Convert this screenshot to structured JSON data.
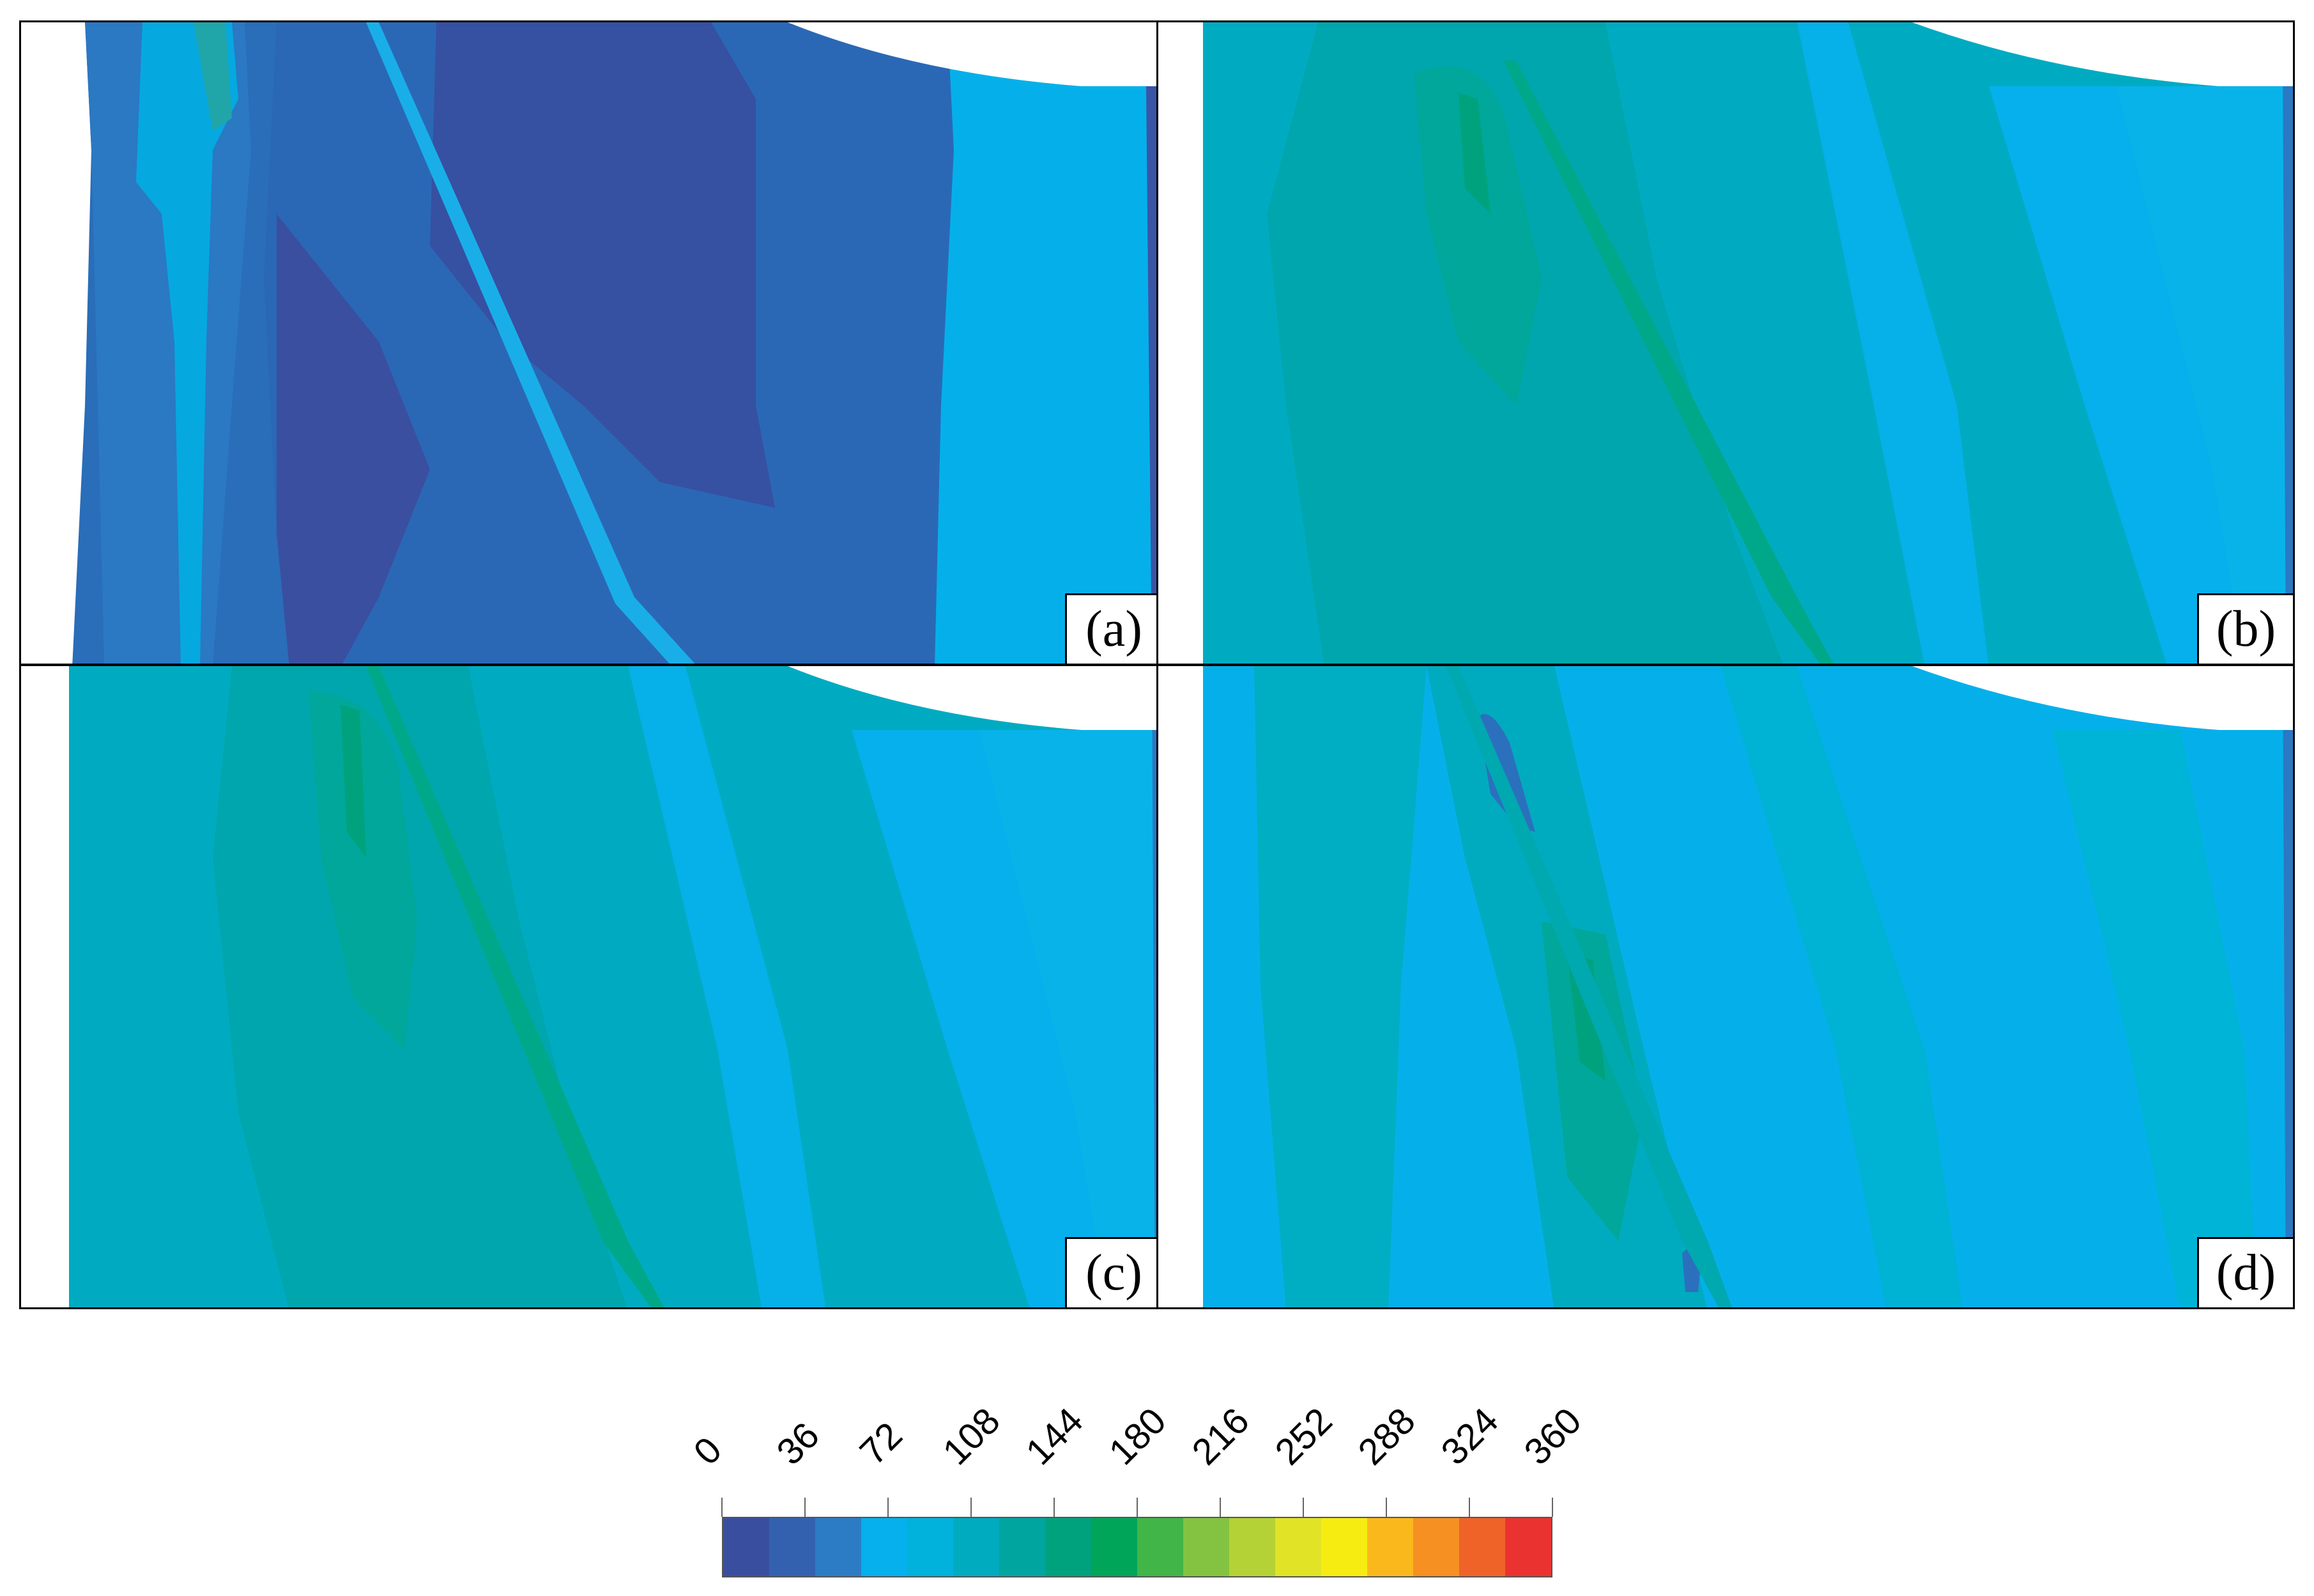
{
  "panels": [
    {
      "id": "a",
      "label": "(a)"
    },
    {
      "id": "b",
      "label": "(b)"
    },
    {
      "id": "c",
      "label": "(c)"
    },
    {
      "id": "d",
      "label": "(d)"
    }
  ],
  "colorbar": {
    "ticks": [
      "0",
      "36",
      "72",
      "108",
      "144",
      "180",
      "216",
      "252",
      "288",
      "324",
      "360"
    ],
    "colors": [
      "#3a4ea0",
      "#3361b0",
      "#2b7cc4",
      "#05b0ec",
      "#00b2dc",
      "#00abc0",
      "#00a5a0",
      "#00a27e",
      "#00a55a",
      "#41b548",
      "#84c341",
      "#b4d235",
      "#e1e326",
      "#f7ec12",
      "#fbb81c",
      "#f69023",
      "#ef6328",
      "#ea3330"
    ]
  }
}
